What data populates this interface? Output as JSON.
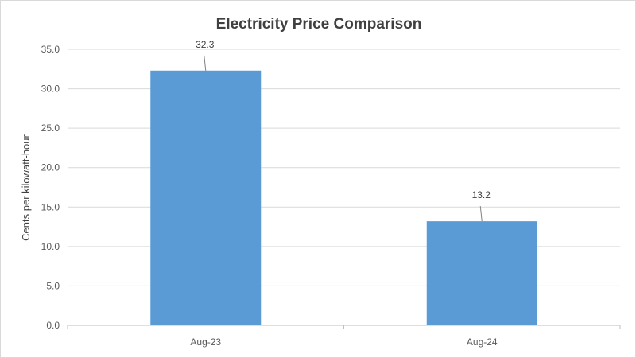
{
  "chart_data": {
    "type": "bar",
    "title": "Electricity Price Comparison",
    "xlabel": "",
    "ylabel": "Cents per kilowatt-hour",
    "categories": [
      "Aug-23",
      "Aug-24"
    ],
    "values": [
      32.3,
      13.2
    ],
    "data_labels": [
      "32.3",
      "13.2"
    ],
    "ylim": [
      0,
      35
    ],
    "yticks": [
      "0.0",
      "5.0",
      "10.0",
      "15.0",
      "20.0",
      "25.0",
      "30.0",
      "35.0"
    ],
    "grid": true,
    "legend": "none",
    "bar_color": "#5b9bd5"
  }
}
